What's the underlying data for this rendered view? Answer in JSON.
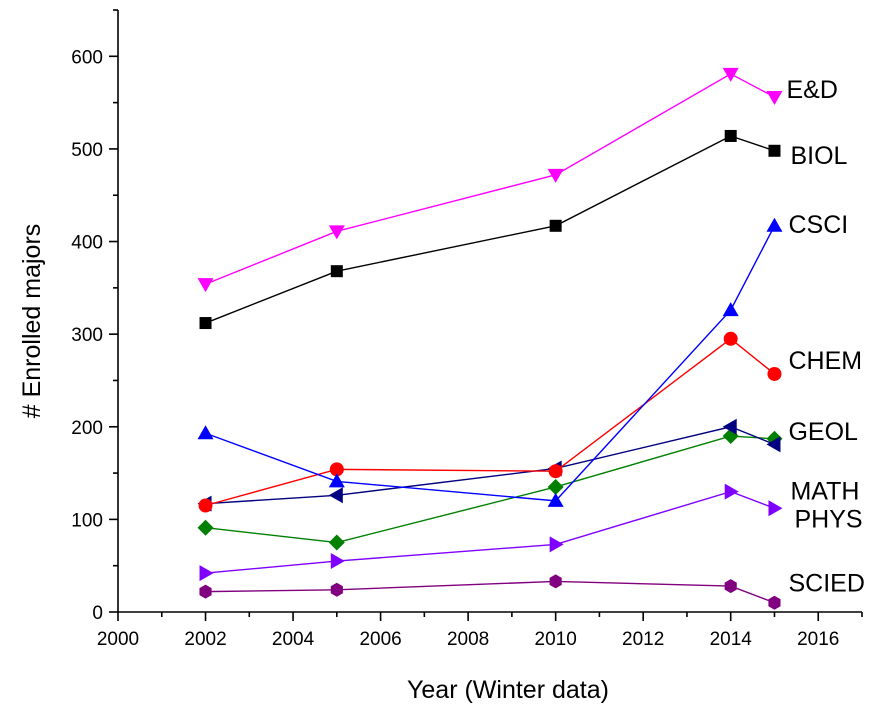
{
  "chart_data": {
    "type": "line",
    "title": "",
    "xlabel": "Year (Winter data)",
    "ylabel": "# Enrolled majors",
    "xlim": [
      2000,
      2017
    ],
    "ylim": [
      0,
      650
    ],
    "xticks": [
      2000,
      2002,
      2004,
      2006,
      2008,
      2010,
      2012,
      2014,
      2016
    ],
    "yticks": [
      0,
      100,
      200,
      300,
      400,
      500,
      600
    ],
    "grid": false,
    "legend": "none (series labeled at right end of lines)",
    "x": [
      2002,
      2005,
      2010,
      2014,
      2015
    ],
    "series": [
      {
        "name": "E&D",
        "color": "#ff00ff",
        "marker": "triangle-down",
        "values": [
          354,
          411,
          472,
          581,
          556
        ]
      },
      {
        "name": "BIOL",
        "color": "#000000",
        "marker": "square",
        "values": [
          312,
          368,
          417,
          514,
          498
        ]
      },
      {
        "name": "CSCI",
        "color": "#0000ff",
        "marker": "triangle-up",
        "values": [
          193,
          141,
          120,
          326,
          417
        ]
      },
      {
        "name": "CHEM",
        "color": "#ff0000",
        "marker": "circle",
        "values": [
          115,
          154,
          152,
          295,
          257
        ]
      },
      {
        "name": "GEOL",
        "color": "#008000",
        "marker": "diamond",
        "values": [
          91,
          75,
          135,
          190,
          187
        ]
      },
      {
        "name": "MATH",
        "color": "#000080",
        "marker": "triangle-left",
        "values": [
          117,
          126,
          155,
          200,
          181
        ]
      },
      {
        "name": "PHYS",
        "color": "#8000ff",
        "marker": "triangle-right",
        "values": [
          42,
          55,
          73,
          130,
          112
        ]
      },
      {
        "name": "SCIED",
        "color": "#800080",
        "marker": "hexagon",
        "values": [
          22,
          24,
          33,
          28,
          10
        ]
      }
    ]
  }
}
